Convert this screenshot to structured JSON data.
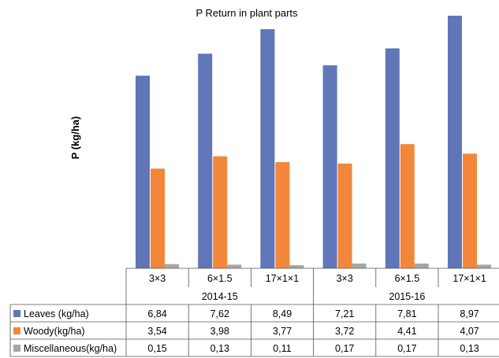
{
  "chart_data": {
    "type": "bar",
    "title": "P Return in plant parts",
    "ylabel": "P (kg/ha)",
    "xlabel": "",
    "ylim": [
      0,
      9.5
    ],
    "grid": false,
    "legend": "data-table",
    "groups": [
      "2014-15",
      "2015-16"
    ],
    "categories": [
      "3×3",
      "6×1.5",
      "17×1×1",
      "3×3",
      "6×1.5",
      "17×1×1"
    ],
    "series": [
      {
        "name": "Leaves (kg/ha)",
        "color": "#6076b8",
        "values": [
          6.84,
          7.62,
          8.49,
          7.21,
          7.81,
          8.97
        ],
        "labels": [
          "6,84",
          "7,62",
          "8,49",
          "7,21",
          "7,81",
          "8,97"
        ]
      },
      {
        "name": "Woody(kg/ha)",
        "color": "#f2873b",
        "values": [
          3.54,
          3.98,
          3.77,
          3.72,
          4.41,
          4.07
        ],
        "labels": [
          "3,54",
          "3,98",
          "3,77",
          "3,72",
          "4,41",
          "4,07"
        ]
      },
      {
        "name": "Miscellaneous(kg/ha)",
        "color": "#a6a6a6",
        "values": [
          0.15,
          0.13,
          0.11,
          0.17,
          0.17,
          0.13
        ],
        "labels": [
          "0,15",
          "0,13",
          "0,11",
          "0,17",
          "0,17",
          "0,13"
        ]
      }
    ]
  }
}
